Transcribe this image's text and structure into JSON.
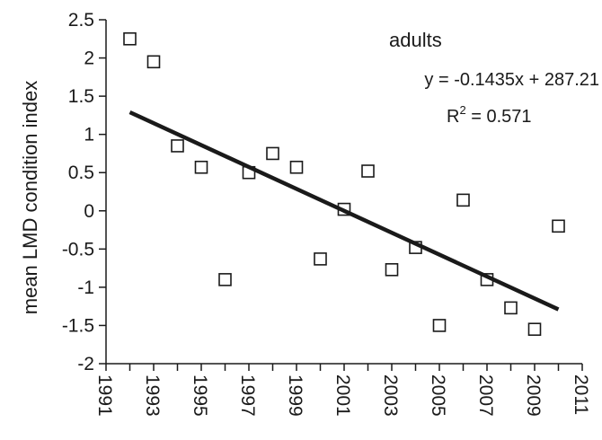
{
  "chart_data": {
    "type": "scatter",
    "panel_label": "adults",
    "ylabel": "mean LMD condition index",
    "xlabel": "",
    "xlim": [
      1991,
      2011
    ],
    "ylim": [
      -2,
      2.5
    ],
    "xticks": [
      "1991",
      "1993",
      "1995",
      "1997",
      "1999",
      "2001",
      "2003",
      "2005",
      "2007",
      "2009",
      "2011"
    ],
    "yticks": [
      "2.5",
      "2",
      "1.5",
      "1",
      "0.5",
      "0",
      "-0.5",
      "-1",
      "-1.5",
      "-2"
    ],
    "points": [
      {
        "x": 1992,
        "y": 2.25
      },
      {
        "x": 1993,
        "y": 1.95
      },
      {
        "x": 1994,
        "y": 0.85
      },
      {
        "x": 1995,
        "y": 0.57
      },
      {
        "x": 1996,
        "y": -0.9
      },
      {
        "x": 1997,
        "y": 0.5
      },
      {
        "x": 1998,
        "y": 0.75
      },
      {
        "x": 1999,
        "y": 0.57
      },
      {
        "x": 2000,
        "y": -0.63
      },
      {
        "x": 2001,
        "y": 0.02
      },
      {
        "x": 2002,
        "y": 0.52
      },
      {
        "x": 2003,
        "y": -0.77
      },
      {
        "x": 2004,
        "y": -0.48
      },
      {
        "x": 2005,
        "y": -1.5
      },
      {
        "x": 2006,
        "y": 0.14
      },
      {
        "x": 2007,
        "y": -0.9
      },
      {
        "x": 2008,
        "y": -1.27
      },
      {
        "x": 2009,
        "y": -1.55
      },
      {
        "x": 2010,
        "y": -0.2
      }
    ],
    "trendline": {
      "x": [
        1992,
        2010
      ],
      "y": [
        1.29,
        -1.29
      ]
    },
    "equation": "y = -0.1435x + 287.21",
    "r2_label": "R",
    "r2_sup": "2",
    "r2_value": " = 0.571",
    "grid": false,
    "legend": "none"
  }
}
